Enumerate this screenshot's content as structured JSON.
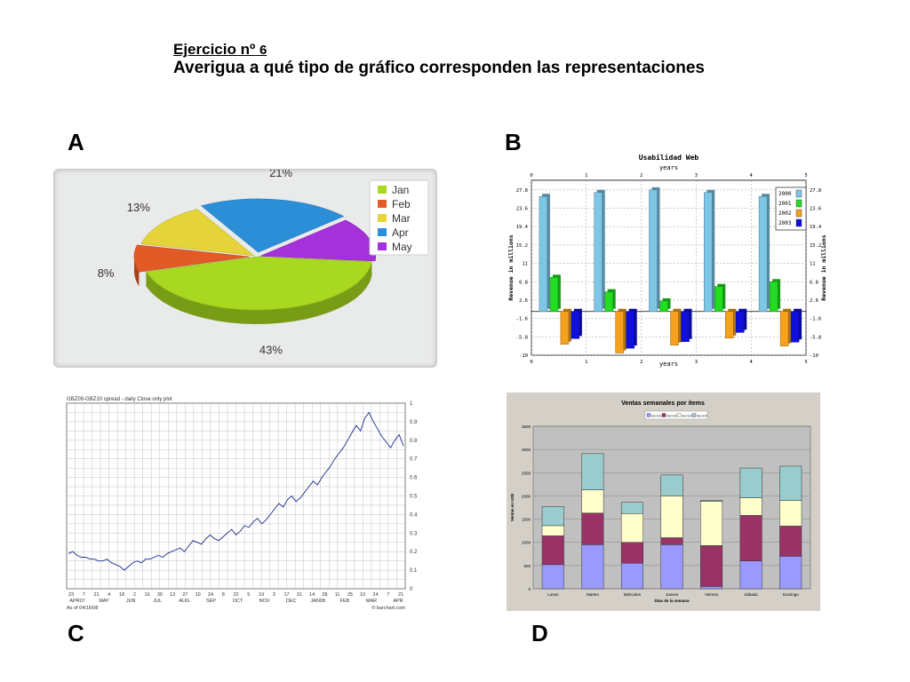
{
  "header": {
    "exercise_label": "Ejercicio nº",
    "exercise_number": "6",
    "instruction": "Averigua a qué tipo de gráfico corresponden las representaciones"
  },
  "labels": {
    "a": "A",
    "b": "B",
    "c": "C",
    "d": "D"
  },
  "chart_data": [
    {
      "id": "A",
      "type": "pie",
      "title": "",
      "categories": [
        "Jan",
        "Feb",
        "Mar",
        "Apr",
        "May"
      ],
      "values": [
        43,
        8,
        13,
        21,
        13
      ],
      "value_labels": [
        "43%",
        "8%",
        "13%",
        "21%",
        "13%"
      ],
      "colors": [
        "#a8d81f",
        "#e25b26",
        "#e4d43a",
        "#2b8fd8",
        "#a431d9"
      ],
      "legend": "top-right"
    },
    {
      "id": "B",
      "type": "bar",
      "title": "Usabilidad Web",
      "xlabel": "years",
      "ylabel": "Revenue in millions",
      "ylim": [
        -10,
        30
      ],
      "xlim": [
        0,
        5
      ],
      "x_ticks": [
        "0",
        "1",
        "2",
        "3",
        "4",
        "5"
      ],
      "y_ticks": [
        "27.8",
        "23.6",
        "19.4",
        "15.2",
        "11",
        "6.8",
        "2.6",
        "-1.6",
        "-5.8",
        "-10"
      ],
      "categories": [
        "1",
        "2",
        "3",
        "4",
        "5"
      ],
      "series": [
        {
          "name": "2000",
          "values": [
            26.3,
            27.2,
            27.8,
            27.2,
            26.3
          ],
          "color": "#7ec6e6"
        },
        {
          "name": "2001",
          "values": [
            7.8,
            4.5,
            2.4,
            5.7,
            6.8
          ],
          "color": "#22dd22"
        },
        {
          "name": "2002",
          "values": [
            -7.5,
            -9.5,
            -7.7,
            -6.1,
            -7.9
          ],
          "color": "#f5a11d"
        },
        {
          "name": "2003",
          "values": [
            -6.2,
            -8.4,
            -6.9,
            -4.8,
            -7.0
          ],
          "color": "#1010dd"
        }
      ],
      "legend": "top-right"
    },
    {
      "id": "C",
      "type": "line",
      "title": "GBZ09-GBZ10 spread - daily Close only plot",
      "footer_left": "As of 04/16/08",
      "footer_right": "© barchart.com",
      "ylim": [
        0,
        1.0
      ],
      "y_ticks": [
        "0",
        "0.1",
        "0.2",
        "0.3",
        "0.4",
        "0.5",
        "0.6",
        "0.7",
        "0.8",
        "0.9",
        "1"
      ],
      "x_day_ticks": [
        "23",
        "7",
        "21",
        "4",
        "18",
        "2",
        "16",
        "30",
        "13",
        "27",
        "10",
        "24",
        "8",
        "22",
        "5",
        "19",
        "3",
        "17",
        "31",
        "14",
        "28",
        "11",
        "25",
        "10",
        "24",
        "7",
        "21"
      ],
      "x_month_ticks": [
        "APR07",
        "MAY",
        "JUN",
        "JUL",
        "AUG",
        "SEP",
        "OCT",
        "NOV",
        "DEC",
        "JAN08",
        "FEB",
        "MAR",
        "APR"
      ],
      "values": [
        0.19,
        0.2,
        0.18,
        0.17,
        0.17,
        0.16,
        0.16,
        0.15,
        0.15,
        0.16,
        0.14,
        0.13,
        0.12,
        0.1,
        0.12,
        0.14,
        0.15,
        0.14,
        0.16,
        0.16,
        0.17,
        0.18,
        0.17,
        0.19,
        0.2,
        0.21,
        0.22,
        0.2,
        0.23,
        0.26,
        0.25,
        0.24,
        0.27,
        0.29,
        0.27,
        0.26,
        0.28,
        0.3,
        0.32,
        0.29,
        0.31,
        0.34,
        0.33,
        0.36,
        0.38,
        0.35,
        0.37,
        0.4,
        0.43,
        0.46,
        0.44,
        0.48,
        0.5,
        0.47,
        0.49,
        0.52,
        0.55,
        0.58,
        0.56,
        0.6,
        0.63,
        0.66,
        0.7,
        0.73,
        0.76,
        0.8,
        0.84,
        0.88,
        0.85,
        0.92,
        0.95,
        0.9,
        0.86,
        0.82,
        0.79,
        0.76,
        0.8,
        0.83,
        0.77
      ]
    },
    {
      "id": "D",
      "type": "bar",
      "stacked": true,
      "title": "Ventas semanales por items",
      "xlabel": "Días de la semana",
      "ylabel": "Ventas en US$",
      "ylim": [
        0,
        3500
      ],
      "y_ticks": [
        "0",
        "500",
        "1000",
        "1500",
        "2000",
        "2500",
        "3000",
        "3500"
      ],
      "categories": [
        "Lunes",
        "Martes",
        "Miércoles",
        "Jueves",
        "Viernes",
        "Sábado",
        "Domingo"
      ],
      "series": [
        {
          "name": "item01",
          "values": [
            520,
            950,
            550,
            950,
            50,
            600,
            700
          ],
          "color": "#9999ff"
        },
        {
          "name": "item02",
          "values": [
            620,
            680,
            450,
            150,
            880,
            980,
            650
          ],
          "color": "#993366"
        },
        {
          "name": "item03",
          "values": [
            220,
            500,
            620,
            900,
            950,
            380,
            550
          ],
          "color": "#ffffcc"
        },
        {
          "name": "item04",
          "values": [
            410,
            780,
            240,
            450,
            20,
            640,
            740
          ],
          "color": "#99cccc"
        }
      ],
      "legend": "top"
    }
  ]
}
